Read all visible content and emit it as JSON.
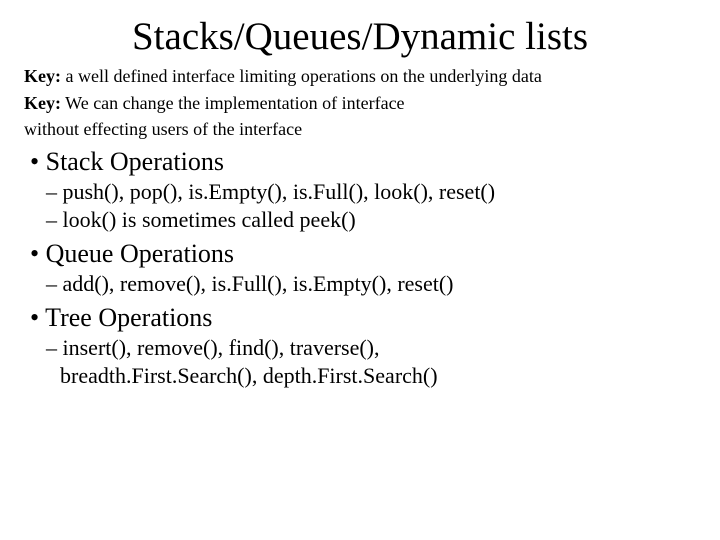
{
  "title": "Stacks/Queues/Dynamic lists",
  "key_label": "Key:",
  "key1": " a well defined interface limiting operations on the underlying data",
  "key2_line1": " We can change the implementation of interface",
  "key2_line2": "without effecting users of the interface",
  "sections": {
    "stack": {
      "heading": "Stack Operations",
      "line1": "push(), pop(), is.Empty(), is.Full(), look(), reset()",
      "line2": "look() is sometimes called peek()"
    },
    "queue": {
      "heading": "Queue Operations",
      "line1": "add(), remove(), is.Full(), is.Empty(), reset()"
    },
    "tree": {
      "heading": "Tree Operations",
      "line1": "insert(), remove(), find(), traverse(),",
      "line2": "breadth.First.Search(), depth.First.Search()"
    }
  }
}
